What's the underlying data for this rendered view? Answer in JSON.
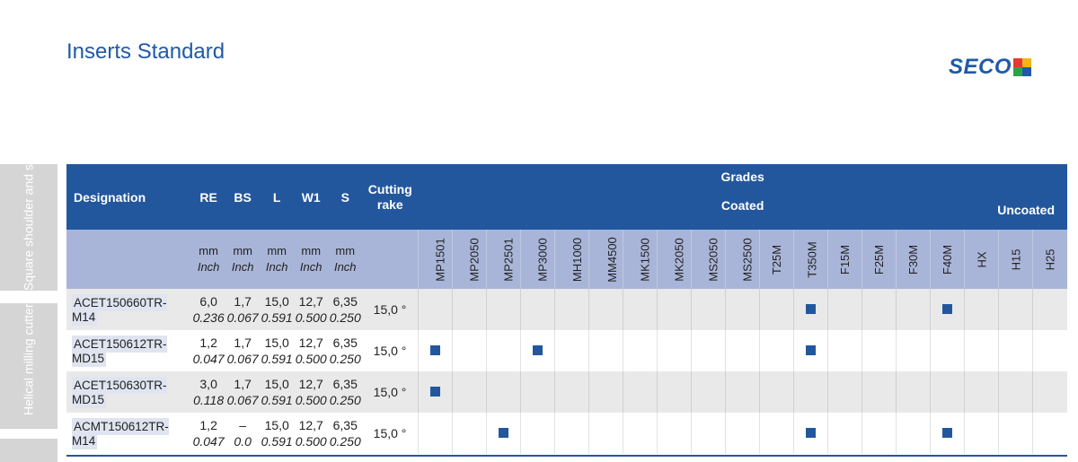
{
  "title": "Inserts Standard",
  "logo": {
    "text": "SECO"
  },
  "side_tabs": [
    "Square shoulder and slot milling cutters",
    "Helical milling cutters",
    ""
  ],
  "table": {
    "headers": {
      "designation": "Designation",
      "dims": [
        "RE",
        "BS",
        "L",
        "W1",
        "S"
      ],
      "cutting_rake": "Cutting rake",
      "grades": "Grades",
      "coated": "Coated",
      "uncoated": "Uncoated",
      "unit_mm": "mm",
      "unit_inch": "Inch"
    },
    "grade_names": [
      "MP1501",
      "MP2050",
      "MP2501",
      "MP3000",
      "MH1000",
      "MM4500",
      "MK1500",
      "MK2050",
      "MS2050",
      "MS2500",
      "T25M",
      "T350M",
      "F15M",
      "F25M",
      "F30M",
      "F40M",
      "HX",
      "H15",
      "H25"
    ],
    "rows": [
      {
        "code": "ACET150660TR-M14",
        "mm": [
          "6,0",
          "1,7",
          "15,0",
          "12,7",
          "6,35"
        ],
        "inch": [
          "0.236",
          "0.067",
          "0.591",
          "0.500",
          "0.250"
        ],
        "rake": "15,0 °",
        "grades": [
          "T350M",
          "F40M"
        ]
      },
      {
        "code": "ACET150612TR-MD15",
        "mm": [
          "1,2",
          "1,7",
          "15,0",
          "12,7",
          "6,35"
        ],
        "inch": [
          "0.047",
          "0.067",
          "0.591",
          "0.500",
          "0.250"
        ],
        "rake": "15,0 °",
        "grades": [
          "MP1501",
          "MP3000",
          "T350M"
        ]
      },
      {
        "code": "ACET150630TR-MD15",
        "mm": [
          "3,0",
          "1,7",
          "15,0",
          "12,7",
          "6,35"
        ],
        "inch": [
          "0.118",
          "0.067",
          "0.591",
          "0.500",
          "0.250"
        ],
        "rake": "15,0 °",
        "grades": [
          "MP1501"
        ]
      },
      {
        "code": "ACMT150612TR-M14",
        "mm": [
          "1,2",
          "–",
          "15,0",
          "12,7",
          "6,35"
        ],
        "inch": [
          "0.047",
          "0.0",
          "0.591",
          "0.500",
          "0.250"
        ],
        "rake": "15,0 °",
        "grades": [
          "MP2501",
          "T350M",
          "F40M"
        ]
      }
    ]
  },
  "colors": {
    "header": "#22579d",
    "subheader": "#a9b5d8",
    "mark": "#22579d"
  }
}
